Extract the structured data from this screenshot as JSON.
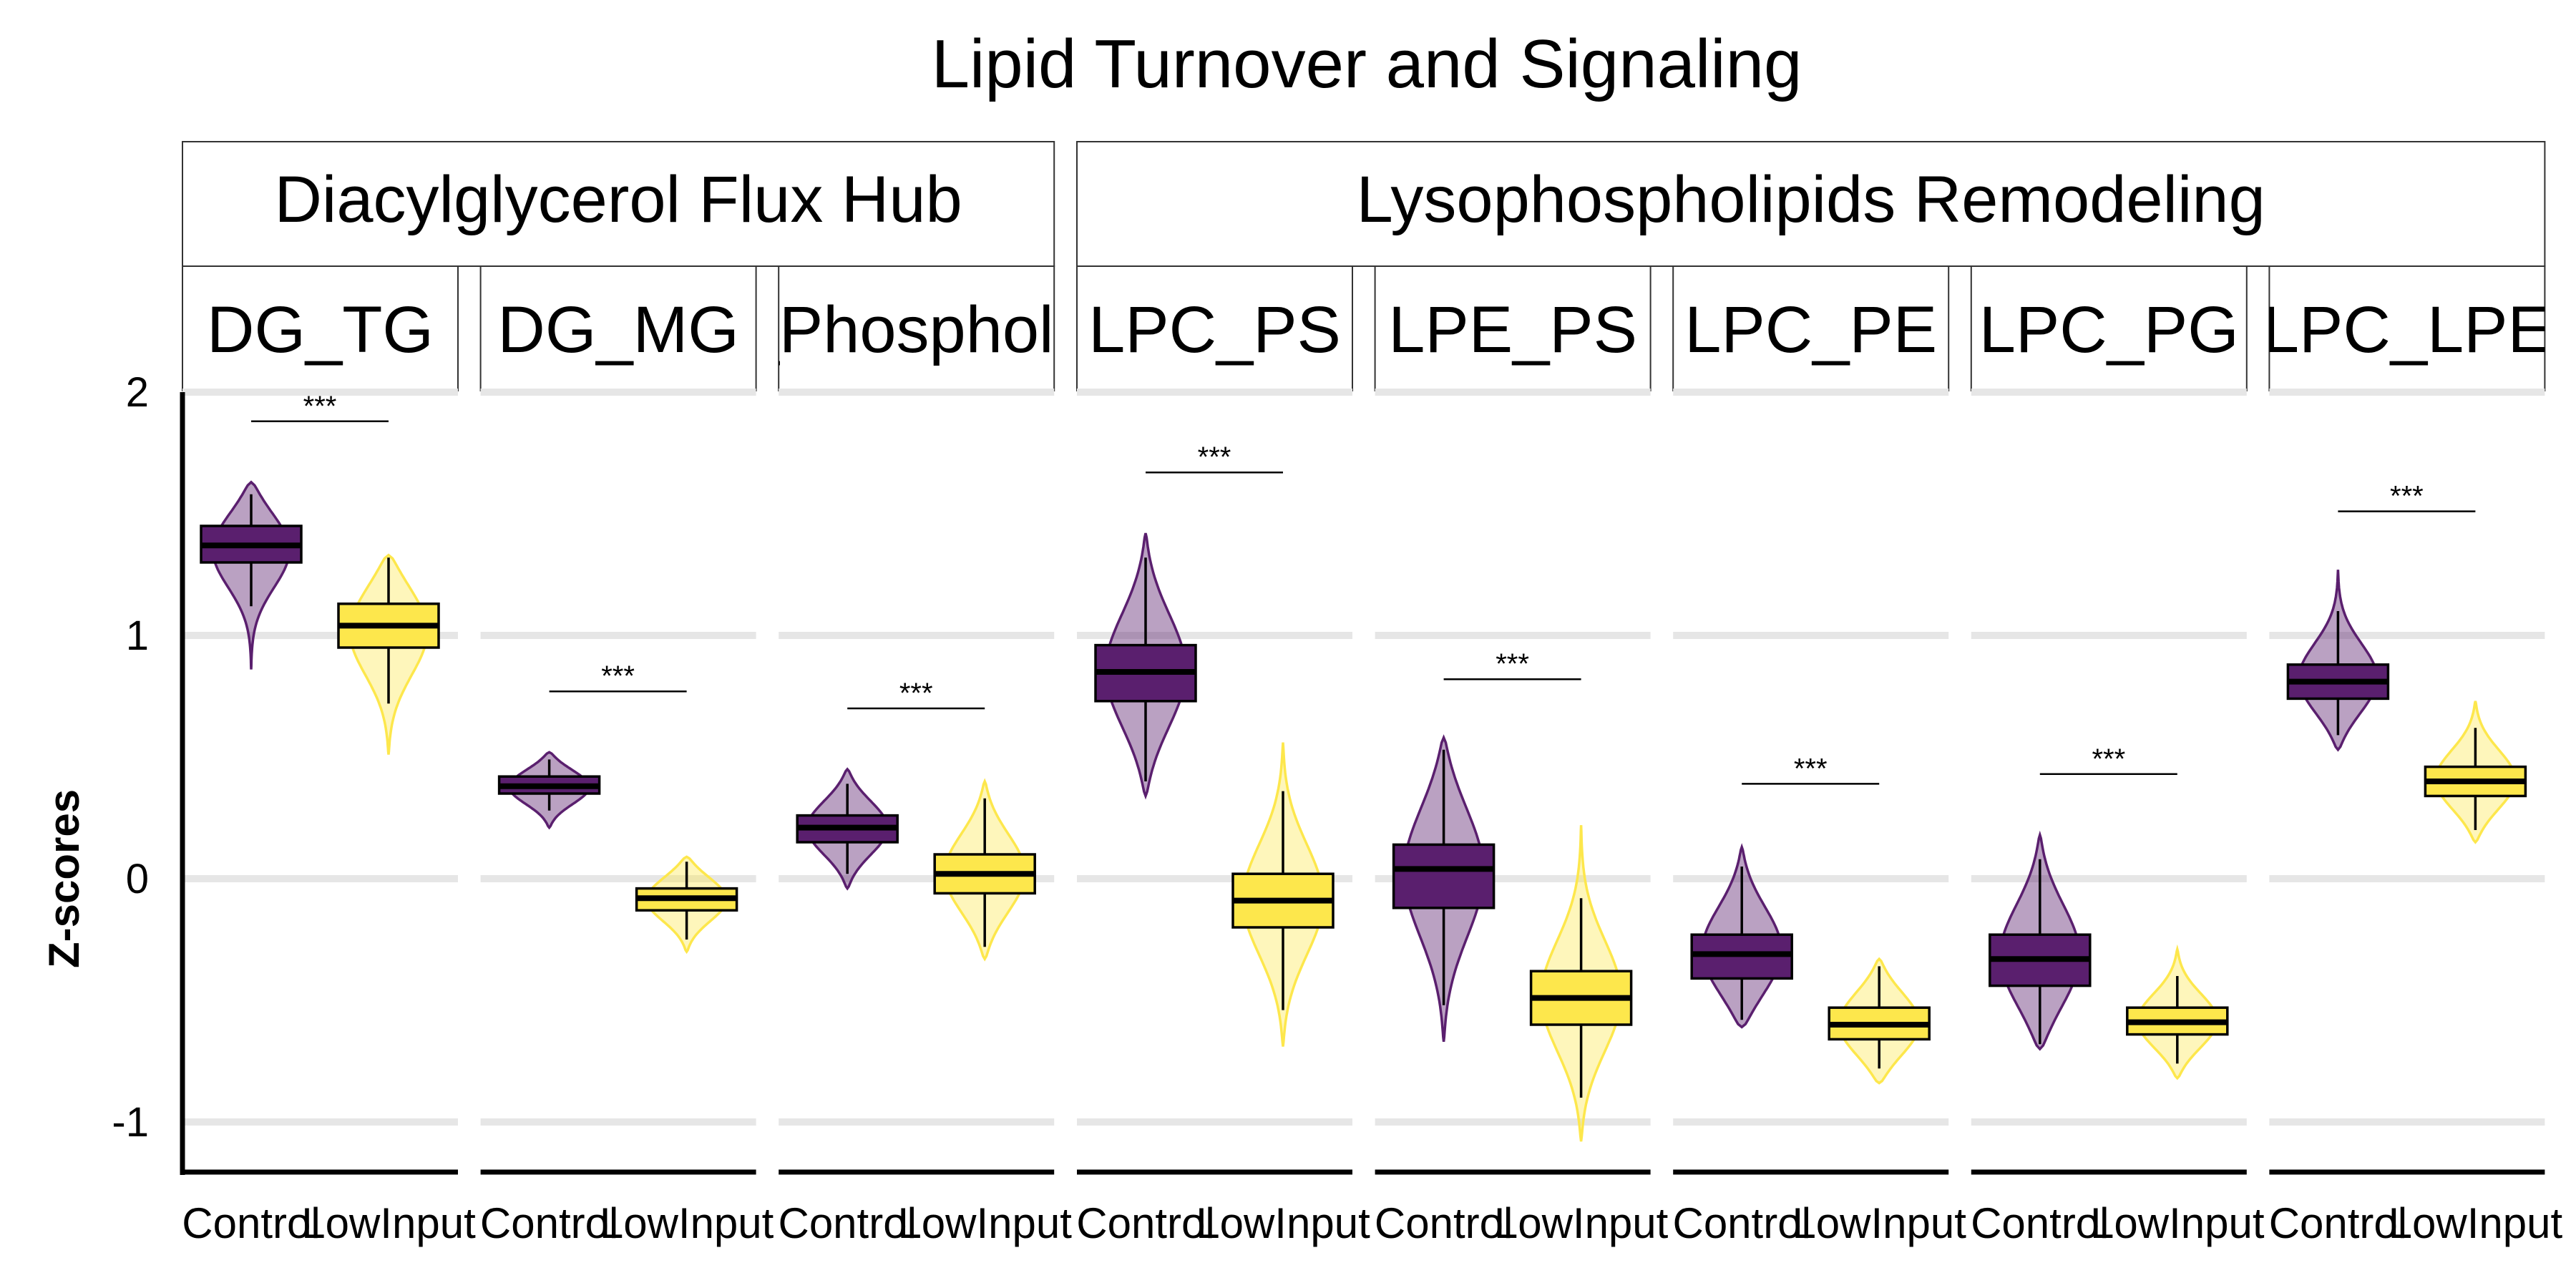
{
  "chart_data": {
    "type": "violin",
    "title": "Lipid Turnover and Signaling",
    "ylabel": "Z-scores",
    "xlabel": "",
    "ylim": [
      -1.2,
      2.0
    ],
    "yticks": [
      -1,
      0,
      1,
      2
    ],
    "grid": true,
    "legend": "none",
    "colors": {
      "Control": "#5a1f6e",
      "LowInput": "#fde74c"
    },
    "groups": [
      {
        "label": "Diacylglycerol Flux Hub",
        "panels": [
          0,
          1,
          2
        ]
      },
      {
        "label": "Lysophospholipids Remodeling",
        "panels": [
          3,
          4,
          5,
          6,
          7
        ]
      }
    ],
    "panels": [
      {
        "label": "DG_TG",
        "categories": [
          "Control",
          "LowInput"
        ],
        "significance": "***",
        "sig_y": 1.88,
        "series": [
          {
            "name": "Control",
            "q1": 1.3,
            "median": 1.37,
            "q3": 1.45,
            "whisker_low": 1.12,
            "whisker_high": 1.58,
            "min": 0.86,
            "max": 1.63
          },
          {
            "name": "LowInput",
            "q1": 0.95,
            "median": 1.04,
            "q3": 1.13,
            "whisker_low": 0.72,
            "whisker_high": 1.32,
            "min": 0.51,
            "max": 1.33
          }
        ]
      },
      {
        "label": "DG_MG",
        "categories": [
          "Control",
          "LowInput"
        ],
        "significance": "***",
        "sig_y": 0.77,
        "series": [
          {
            "name": "Control",
            "q1": 0.35,
            "median": 0.38,
            "q3": 0.42,
            "whisker_low": 0.28,
            "whisker_high": 0.49,
            "min": 0.21,
            "max": 0.52
          },
          {
            "name": "LowInput",
            "q1": -0.13,
            "median": -0.08,
            "q3": -0.04,
            "whisker_low": -0.25,
            "whisker_high": 0.07,
            "min": -0.3,
            "max": 0.09
          }
        ]
      },
      {
        "label": "DG_Phospholipids",
        "categories": [
          "Control",
          "LowInput"
        ],
        "significance": "***",
        "sig_y": 0.7,
        "series": [
          {
            "name": "Control",
            "q1": 0.15,
            "median": 0.21,
            "q3": 0.26,
            "whisker_low": 0.02,
            "whisker_high": 0.39,
            "min": -0.04,
            "max": 0.45
          },
          {
            "name": "LowInput",
            "q1": -0.06,
            "median": 0.02,
            "q3": 0.1,
            "whisker_low": -0.28,
            "whisker_high": 0.33,
            "min": -0.33,
            "max": 0.4
          }
        ]
      },
      {
        "label": "LPC_PS",
        "categories": [
          "Control",
          "LowInput"
        ],
        "significance": "***",
        "sig_y": 1.67,
        "series": [
          {
            "name": "Control",
            "q1": 0.73,
            "median": 0.85,
            "q3": 0.96,
            "whisker_low": 0.4,
            "whisker_high": 1.32,
            "min": 0.34,
            "max": 1.42
          },
          {
            "name": "LowInput",
            "q1": -0.2,
            "median": -0.09,
            "q3": 0.02,
            "whisker_low": -0.54,
            "whisker_high": 0.36,
            "min": -0.69,
            "max": 0.56
          }
        ]
      },
      {
        "label": "LPE_PS",
        "categories": [
          "Control",
          "LowInput"
        ],
        "significance": "***",
        "sig_y": 0.82,
        "series": [
          {
            "name": "Control",
            "q1": -0.12,
            "median": 0.04,
            "q3": 0.14,
            "whisker_low": -0.52,
            "whisker_high": 0.53,
            "min": -0.67,
            "max": 0.58
          },
          {
            "name": "LowInput",
            "q1": -0.6,
            "median": -0.49,
            "q3": -0.38,
            "whisker_low": -0.9,
            "whisker_high": -0.08,
            "min": -1.08,
            "max": 0.22
          }
        ]
      },
      {
        "label": "LPC_PE",
        "categories": [
          "Control",
          "LowInput"
        ],
        "significance": "***",
        "sig_y": 0.39,
        "series": [
          {
            "name": "Control",
            "q1": -0.41,
            "median": -0.31,
            "q3": -0.23,
            "whisker_low": -0.58,
            "whisker_high": 0.05,
            "min": -0.61,
            "max": 0.13
          },
          {
            "name": "LowInput",
            "q1": -0.66,
            "median": -0.6,
            "q3": -0.53,
            "whisker_low": -0.78,
            "whisker_high": -0.36,
            "min": -0.84,
            "max": -0.33
          }
        ]
      },
      {
        "label": "LPC_PG",
        "categories": [
          "Control",
          "LowInput"
        ],
        "significance": "***",
        "sig_y": 0.43,
        "series": [
          {
            "name": "Control",
            "q1": -0.44,
            "median": -0.33,
            "q3": -0.23,
            "whisker_low": -0.68,
            "whisker_high": 0.08,
            "min": -0.7,
            "max": 0.18
          },
          {
            "name": "LowInput",
            "q1": -0.64,
            "median": -0.59,
            "q3": -0.53,
            "whisker_low": -0.76,
            "whisker_high": -0.4,
            "min": -0.82,
            "max": -0.29
          }
        ]
      },
      {
        "label": "LPC_LPE",
        "categories": [
          "Control",
          "LowInput"
        ],
        "significance": "***",
        "sig_y": 1.51,
        "series": [
          {
            "name": "Control",
            "q1": 0.74,
            "median": 0.81,
            "q3": 0.88,
            "whisker_low": 0.59,
            "whisker_high": 1.1,
            "min": 0.53,
            "max": 1.27
          },
          {
            "name": "LowInput",
            "q1": 0.34,
            "median": 0.4,
            "q3": 0.46,
            "whisker_low": 0.2,
            "whisker_high": 0.62,
            "min": 0.15,
            "max": 0.73
          }
        ]
      }
    ]
  }
}
